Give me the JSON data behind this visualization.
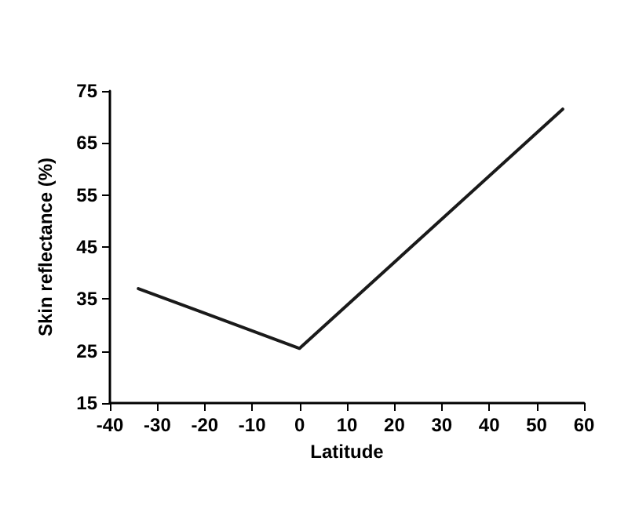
{
  "chart_data": {
    "type": "line",
    "xlabel": "Latitude",
    "ylabel": "Skin reflectance (%)",
    "x": [
      -34,
      0,
      55.5
    ],
    "series": [
      {
        "color": "#1a1a1a",
        "values": [
          37,
          25.5,
          71.5
        ]
      }
    ],
    "xlim": [
      -40,
      60
    ],
    "xticks": [
      -40,
      -30,
      -20,
      -10,
      0,
      10,
      20,
      30,
      40,
      50,
      60
    ],
    "ylim": [
      15,
      75
    ],
    "yticks": [
      15,
      25,
      35,
      45,
      55,
      65,
      75
    ],
    "grid": false,
    "marker": "none",
    "line_style": "solid"
  }
}
